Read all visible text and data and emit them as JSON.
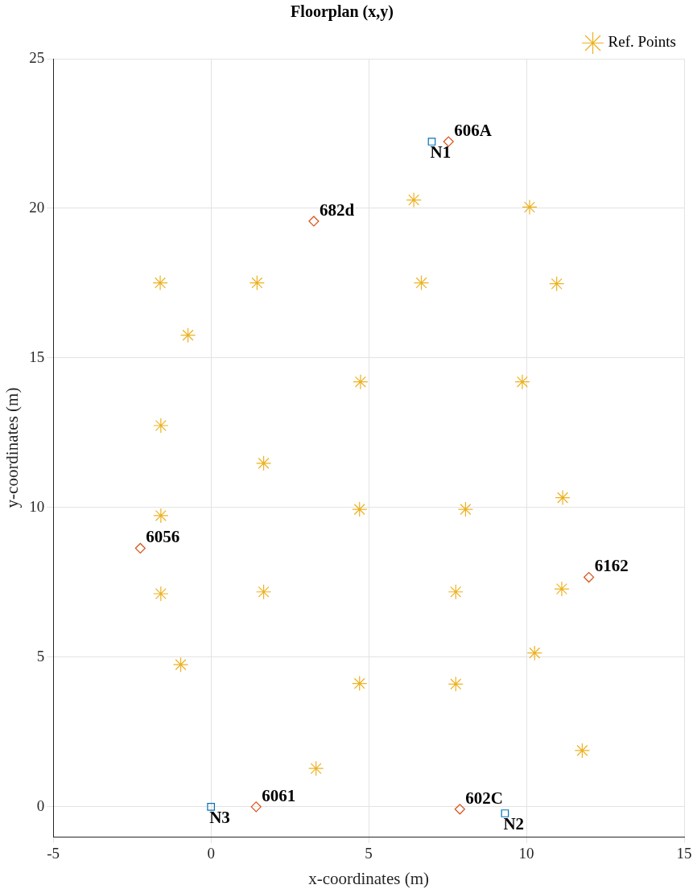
{
  "chart_data": {
    "type": "scatter",
    "title": "Floorplan (x,y)",
    "xlabel": "x-coordinates (m)",
    "ylabel": "y-coordinates (m)",
    "xlim": [
      -5,
      15
    ],
    "ylim": [
      -1,
      25
    ],
    "xticks": [
      -5,
      0,
      5,
      10,
      15
    ],
    "yticks": [
      0,
      5,
      10,
      15,
      20,
      25
    ],
    "grid": true,
    "legend": "top right",
    "series": [
      {
        "color": "#0072bd",
        "marker": "square",
        "x": [
          7.0,
          9.32,
          0
        ],
        "values": [
          22.23,
          -0.22,
          0
        ]
      },
      {
        "color": "#d95319",
        "marker": "diamond",
        "x": [
          7.53,
          3.26,
          -2.24,
          11.98,
          1.43,
          7.89
        ],
        "values": [
          22.23,
          19.57,
          8.64,
          7.67,
          0,
          -0.08
        ]
      },
      {
        "name": "Ref. Points",
        "color": "#edb120",
        "marker": "cross",
        "x": [
          6.43,
          10.1,
          -1.61,
          1.46,
          6.67,
          10.96,
          -0.73,
          4.74,
          9.87,
          -1.59,
          1.67,
          -1.59,
          4.71,
          8.07,
          11.15,
          -1.59,
          1.67,
          7.76,
          11.12,
          -0.96,
          4.71,
          7.76,
          10.26,
          11.77,
          3.33
        ],
        "values": [
          20.28,
          20.04,
          17.51,
          17.51,
          17.51,
          17.48,
          15.76,
          14.2,
          14.2,
          12.74,
          11.48,
          9.73,
          9.94,
          9.94,
          10.33,
          7.12,
          7.18,
          7.18,
          7.28,
          4.75,
          4.12,
          4.1,
          5.14,
          1.88,
          1.28
        ]
      }
    ],
    "annotations": [
      {
        "text": "N1",
        "x": 7.0,
        "y": 22.23
      },
      {
        "text": "N2",
        "x": 9.32,
        "y": -0.22
      },
      {
        "text": "N3",
        "x": 0,
        "y": 0
      },
      {
        "text": "606A",
        "x": 7.53,
        "y": 22.23
      },
      {
        "text": "682d",
        "x": 3.26,
        "y": 19.57
      },
      {
        "text": "6056",
        "x": -2.24,
        "y": 8.64
      },
      {
        "text": "6162",
        "x": 11.98,
        "y": 7.67
      },
      {
        "text": "6061",
        "x": 1.43,
        "y": 0
      },
      {
        "text": "602C",
        "x": 7.89,
        "y": -0.08
      }
    ]
  }
}
